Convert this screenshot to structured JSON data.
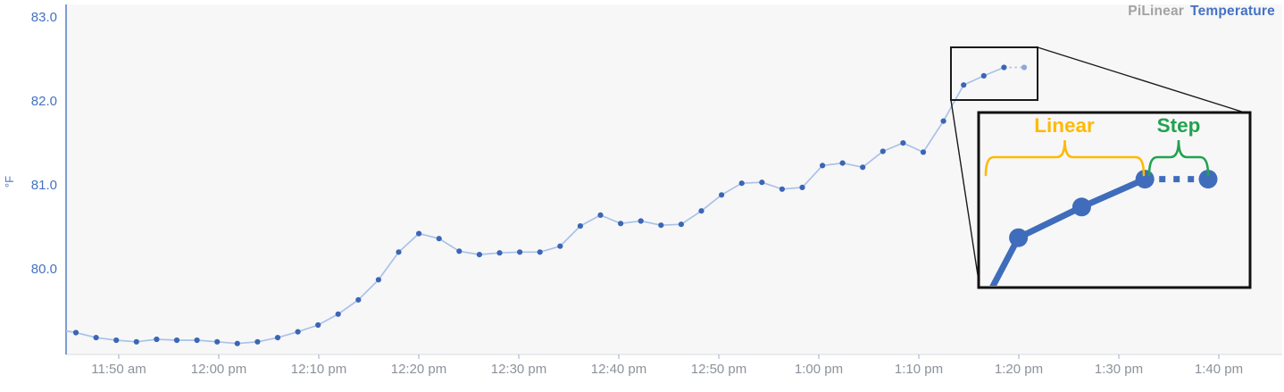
{
  "legend": {
    "prefix": "PiLinear",
    "series": "Temperature"
  },
  "colors": {
    "accent_blue": "#4472C4",
    "line": "#A9C2E8",
    "marker": "#3B66B4",
    "marker_faded": "#8FA8D8",
    "inset_blue": "#3F6DBB",
    "gold": "#FFB900",
    "green": "#22A24E",
    "axis_blue": "#7E9BD3",
    "tick_gray": "#8C929C",
    "legend_gray": "#A3A3A3",
    "callout_black": "#1A1A1A",
    "plot_bg": "#F7F7F8"
  },
  "chart_data": {
    "type": "line",
    "title": "PiLinear Temperature",
    "ylabel": "°F",
    "xlabel": "",
    "grid": false,
    "legend_position": "top-right",
    "y_ticks": [
      "83.0",
      "82.0",
      "81.0",
      "80.0"
    ],
    "ylim": [
      78.95,
      83.05
    ],
    "x_ticks": [
      "11:50 am",
      "12:00 pm",
      "12:10 pm",
      "12:20 pm",
      "12:30 pm",
      "12:40 pm",
      "12:50 pm",
      "1:00 pm",
      "1:10 pm",
      "1:20 pm",
      "1:30 pm",
      "1:40 pm"
    ],
    "sample_interval_minutes": 2,
    "series": [
      {
        "name": "Temperature",
        "units": "°F",
        "left_edge_value": 79.27,
        "x_times": [
          "11:46 am",
          "11:48 am",
          "11:50 am",
          "11:52 am",
          "11:54 am",
          "11:56 am",
          "11:58 am",
          "12:00 pm",
          "12:02 pm",
          "12:04 pm",
          "12:06 pm",
          "12:08 pm",
          "12:10 pm",
          "12:12 pm",
          "12:14 pm",
          "12:16 pm",
          "12:18 pm",
          "12:20 pm",
          "12:22 pm",
          "12:24 pm",
          "12:26 pm",
          "12:28 pm",
          "12:30 pm",
          "12:32 pm",
          "12:34 pm",
          "12:36 pm",
          "12:38 pm",
          "12:40 pm",
          "12:42 pm",
          "12:44 pm",
          "12:46 pm",
          "12:48 pm",
          "12:50 pm",
          "12:52 pm",
          "12:54 pm",
          "12:56 pm",
          "12:58 pm",
          "1:00 pm",
          "1:02 pm",
          "1:04 pm",
          "1:06 pm",
          "1:08 pm",
          "1:10 pm",
          "1:12 pm",
          "1:14 pm",
          "1:16 pm",
          "1:18 pm",
          "1:20 pm"
        ],
        "values": [
          79.25,
          79.19,
          79.16,
          79.14,
          79.17,
          79.16,
          79.16,
          79.14,
          79.12,
          79.14,
          79.19,
          79.26,
          79.34,
          79.47,
          79.64,
          79.88,
          80.21,
          80.43,
          80.37,
          80.22,
          80.18,
          80.2,
          80.21,
          80.21,
          80.28,
          80.52,
          80.65,
          80.55,
          80.58,
          80.53,
          80.54,
          80.7,
          80.89,
          81.03,
          81.04,
          80.96,
          80.98,
          81.24,
          81.27,
          81.22,
          81.41,
          81.51,
          81.4,
          81.77,
          82.2,
          82.31,
          82.41,
          82.41
        ],
        "last_segment_interpolation": "step",
        "final_point_style": "faded"
      }
    ],
    "annotations": {
      "inset": {
        "linear_label": "Linear",
        "step_label": "Step"
      }
    }
  }
}
